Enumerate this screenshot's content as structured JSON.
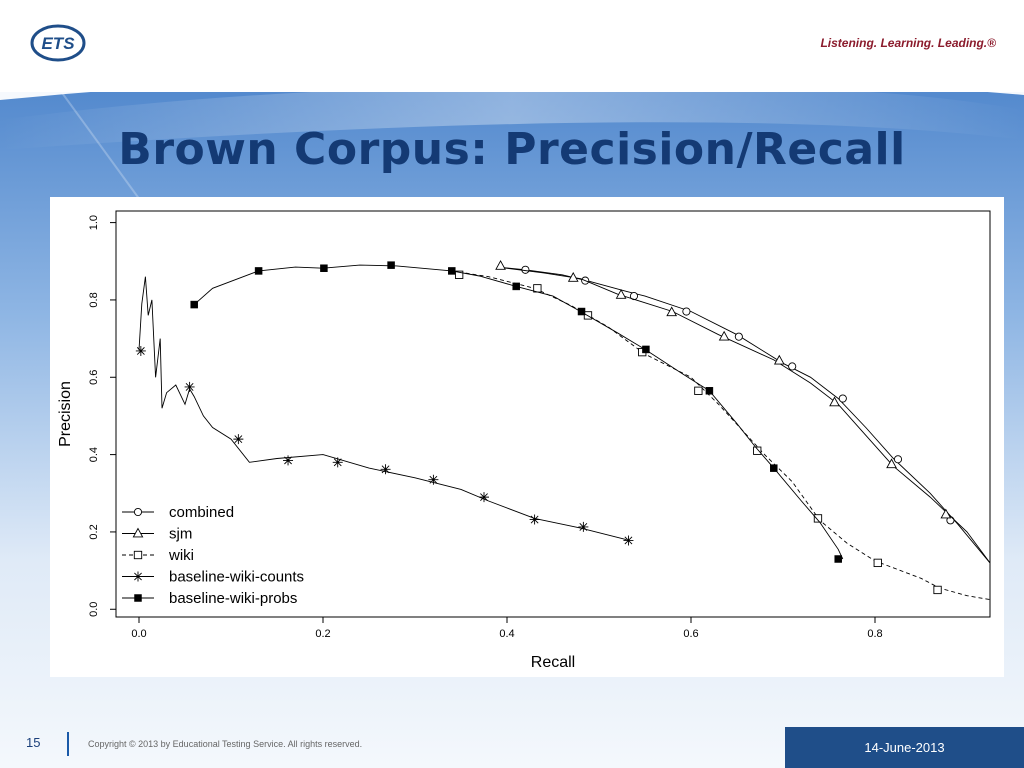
{
  "header": {
    "logo_text": "ETS",
    "tagline": "Listening. Learning. Leading.®"
  },
  "slide": {
    "title": "Brown Corpus: Precision/Recall"
  },
  "footer": {
    "page_number": "15",
    "copyright": "Copyright © 2013 by Educational Testing Service. All rights reserved.",
    "date": "14-June-2013"
  },
  "colors": {
    "title": "#143a74",
    "tagline": "#8b1b2c",
    "date_box": "#1f4e89",
    "sky_top": "#5b8fd0",
    "sky_bottom": "#eef4fb"
  },
  "chart_data": {
    "type": "line",
    "xlabel": "Recall",
    "ylabel": "Precision",
    "xlim": [
      -0.025,
      0.925
    ],
    "ylim": [
      -0.02,
      1.03
    ],
    "xticks": [
      0.0,
      0.2,
      0.4,
      0.6,
      0.8
    ],
    "xtick_labels": [
      "0.0",
      "0.2",
      "0.4",
      "0.6",
      "0.8"
    ],
    "yticks": [
      0.0,
      0.2,
      0.4,
      0.6,
      0.8,
      1.0
    ],
    "ytick_labels": [
      "0.0",
      "0.2",
      "0.4",
      "0.6",
      "0.8",
      "1.0"
    ],
    "legend_position": "bottom-left",
    "series": [
      {
        "name": "combined",
        "marker": "circle",
        "dash": "solid",
        "line": [
          [
            0.39,
            0.885
          ],
          [
            0.42,
            0.878
          ],
          [
            0.46,
            0.865
          ],
          [
            0.49,
            0.848
          ],
          [
            0.53,
            0.822
          ],
          [
            0.55,
            0.81
          ],
          [
            0.6,
            0.77
          ],
          [
            0.65,
            0.71
          ],
          [
            0.7,
            0.636
          ],
          [
            0.73,
            0.6
          ],
          [
            0.76,
            0.545
          ],
          [
            0.79,
            0.47
          ],
          [
            0.82,
            0.39
          ],
          [
            0.86,
            0.3
          ],
          [
            0.89,
            0.22
          ],
          [
            0.925,
            0.12
          ]
        ],
        "markers": [
          [
            0.42,
            0.878
          ],
          [
            0.485,
            0.85
          ],
          [
            0.538,
            0.81
          ],
          [
            0.595,
            0.77
          ],
          [
            0.652,
            0.705
          ],
          [
            0.71,
            0.628
          ],
          [
            0.765,
            0.545
          ],
          [
            0.825,
            0.388
          ],
          [
            0.882,
            0.23
          ]
        ]
      },
      {
        "name": "sjm",
        "marker": "triangle",
        "dash": "solid",
        "line": [
          [
            0.39,
            0.885
          ],
          [
            0.44,
            0.87
          ],
          [
            0.48,
            0.855
          ],
          [
            0.52,
            0.815
          ],
          [
            0.58,
            0.77
          ],
          [
            0.63,
            0.71
          ],
          [
            0.69,
            0.645
          ],
          [
            0.73,
            0.585
          ],
          [
            0.76,
            0.53
          ],
          [
            0.79,
            0.45
          ],
          [
            0.82,
            0.37
          ],
          [
            0.86,
            0.29
          ],
          [
            0.9,
            0.2
          ],
          [
            0.925,
            0.12
          ]
        ],
        "markers": [
          [
            0.393,
            0.888
          ],
          [
            0.472,
            0.857
          ],
          [
            0.524,
            0.813
          ],
          [
            0.579,
            0.768
          ],
          [
            0.636,
            0.705
          ],
          [
            0.696,
            0.643
          ],
          [
            0.756,
            0.535
          ],
          [
            0.818,
            0.375
          ],
          [
            0.877,
            0.245
          ]
        ]
      },
      {
        "name": "wiki",
        "marker": "square",
        "dash": "dashed",
        "line": [
          [
            0.34,
            0.875
          ],
          [
            0.38,
            0.86
          ],
          [
            0.43,
            0.83
          ],
          [
            0.47,
            0.785
          ],
          [
            0.51,
            0.73
          ],
          [
            0.55,
            0.66
          ],
          [
            0.6,
            0.6
          ],
          [
            0.63,
            0.53
          ],
          [
            0.68,
            0.4
          ],
          [
            0.71,
            0.33
          ],
          [
            0.74,
            0.23
          ],
          [
            0.77,
            0.17
          ],
          [
            0.8,
            0.125
          ],
          [
            0.85,
            0.08
          ],
          [
            0.87,
            0.055
          ],
          [
            0.9,
            0.035
          ],
          [
            0.925,
            0.025
          ]
        ],
        "markers": [
          [
            0.348,
            0.865
          ],
          [
            0.433,
            0.83
          ],
          [
            0.488,
            0.76
          ],
          [
            0.547,
            0.665
          ],
          [
            0.608,
            0.565
          ],
          [
            0.672,
            0.41
          ],
          [
            0.738,
            0.235
          ],
          [
            0.803,
            0.12
          ],
          [
            0.868,
            0.05
          ]
        ]
      },
      {
        "name": "baseline-wiki-counts",
        "marker": "asterisk",
        "dash": "solid",
        "line": [
          [
            0.0,
            0.67
          ],
          [
            0.003,
            0.79
          ],
          [
            0.007,
            0.86
          ],
          [
            0.01,
            0.76
          ],
          [
            0.014,
            0.8
          ],
          [
            0.018,
            0.6
          ],
          [
            0.023,
            0.7
          ],
          [
            0.025,
            0.52
          ],
          [
            0.03,
            0.56
          ],
          [
            0.04,
            0.58
          ],
          [
            0.05,
            0.53
          ],
          [
            0.055,
            0.57
          ],
          [
            0.06,
            0.55
          ],
          [
            0.07,
            0.5
          ],
          [
            0.08,
            0.47
          ],
          [
            0.1,
            0.44
          ],
          [
            0.12,
            0.38
          ],
          [
            0.15,
            0.39
          ],
          [
            0.2,
            0.4
          ],
          [
            0.25,
            0.365
          ],
          [
            0.3,
            0.34
          ],
          [
            0.35,
            0.31
          ],
          [
            0.38,
            0.28
          ],
          [
            0.43,
            0.235
          ],
          [
            0.48,
            0.21
          ],
          [
            0.53,
            0.18
          ]
        ],
        "markers": [
          [
            0.002,
            0.668
          ],
          [
            0.055,
            0.575
          ],
          [
            0.108,
            0.44
          ],
          [
            0.162,
            0.385
          ],
          [
            0.216,
            0.38
          ],
          [
            0.268,
            0.362
          ],
          [
            0.32,
            0.335
          ],
          [
            0.375,
            0.29
          ],
          [
            0.43,
            0.232
          ],
          [
            0.483,
            0.213
          ],
          [
            0.532,
            0.178
          ]
        ]
      },
      {
        "name": "baseline-wiki-probs",
        "marker": "filled-square",
        "dash": "solid",
        "line": [
          [
            0.06,
            0.788
          ],
          [
            0.08,
            0.83
          ],
          [
            0.13,
            0.875
          ],
          [
            0.17,
            0.885
          ],
          [
            0.2,
            0.882
          ],
          [
            0.24,
            0.89
          ],
          [
            0.28,
            0.888
          ],
          [
            0.34,
            0.875
          ],
          [
            0.37,
            0.862
          ],
          [
            0.41,
            0.835
          ],
          [
            0.45,
            0.81
          ],
          [
            0.48,
            0.77
          ],
          [
            0.52,
            0.715
          ],
          [
            0.55,
            0.672
          ],
          [
            0.59,
            0.61
          ],
          [
            0.62,
            0.565
          ],
          [
            0.65,
            0.48
          ],
          [
            0.67,
            0.42
          ],
          [
            0.69,
            0.365
          ],
          [
            0.72,
            0.28
          ],
          [
            0.74,
            0.225
          ],
          [
            0.76,
            0.155
          ],
          [
            0.765,
            0.13
          ]
        ],
        "markers": [
          [
            0.06,
            0.788
          ],
          [
            0.13,
            0.875
          ],
          [
            0.201,
            0.882
          ],
          [
            0.274,
            0.89
          ],
          [
            0.34,
            0.875
          ],
          [
            0.41,
            0.835
          ],
          [
            0.481,
            0.77
          ],
          [
            0.551,
            0.672
          ],
          [
            0.62,
            0.565
          ],
          [
            0.69,
            0.365
          ],
          [
            0.76,
            0.13
          ]
        ]
      }
    ]
  }
}
